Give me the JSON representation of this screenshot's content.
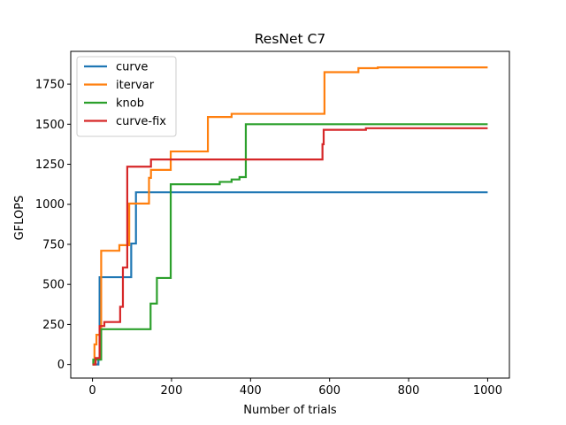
{
  "chart_data": {
    "type": "line",
    "title": "ResNet C7",
    "xlabel": "Number of trials",
    "ylabel": "GFLOPS",
    "xlim": [
      -55,
      1055
    ],
    "ylim": [
      -85,
      1955
    ],
    "xticks": [
      0,
      200,
      400,
      600,
      800,
      1000
    ],
    "yticks": [
      0,
      250,
      500,
      750,
      1000,
      1250,
      1500,
      1750
    ],
    "grid": false,
    "legend_position": "top-left",
    "step": true,
    "series": [
      {
        "name": "curve",
        "color": "#1f77b4",
        "points": [
          [
            0,
            0
          ],
          [
            15,
            30
          ],
          [
            18,
            545
          ],
          [
            95,
            545
          ],
          [
            98,
            755
          ],
          [
            108,
            755
          ],
          [
            110,
            1075
          ],
          [
            1000,
            1075
          ]
        ]
      },
      {
        "name": "itervar",
        "color": "#ff7f0e",
        "points": [
          [
            0,
            0
          ],
          [
            5,
            125
          ],
          [
            10,
            185
          ],
          [
            20,
            185
          ],
          [
            22,
            710
          ],
          [
            65,
            710
          ],
          [
            68,
            745
          ],
          [
            90,
            745
          ],
          [
            93,
            1005
          ],
          [
            140,
            1005
          ],
          [
            143,
            1165
          ],
          [
            148,
            1215
          ],
          [
            195,
            1215
          ],
          [
            198,
            1330
          ],
          [
            290,
            1330
          ],
          [
            292,
            1545
          ],
          [
            350,
            1545
          ],
          [
            352,
            1565
          ],
          [
            585,
            1565
          ],
          [
            587,
            1825
          ],
          [
            670,
            1825
          ],
          [
            673,
            1850
          ],
          [
            720,
            1850
          ],
          [
            722,
            1855
          ],
          [
            1000,
            1855
          ]
        ]
      },
      {
        "name": "knob",
        "color": "#2ca02c",
        "points": [
          [
            0,
            0
          ],
          [
            2,
            30
          ],
          [
            20,
            30
          ],
          [
            22,
            220
          ],
          [
            145,
            220
          ],
          [
            147,
            380
          ],
          [
            160,
            380
          ],
          [
            163,
            540
          ],
          [
            195,
            540
          ],
          [
            198,
            1125
          ],
          [
            320,
            1125
          ],
          [
            322,
            1140
          ],
          [
            350,
            1140
          ],
          [
            352,
            1155
          ],
          [
            370,
            1155
          ],
          [
            372,
            1170
          ],
          [
            385,
            1170
          ],
          [
            388,
            1500
          ],
          [
            1000,
            1500
          ]
        ]
      },
      {
        "name": "curve-fix",
        "color": "#d62728",
        "points": [
          [
            0,
            0
          ],
          [
            8,
            40
          ],
          [
            16,
            40
          ],
          [
            18,
            240
          ],
          [
            28,
            240
          ],
          [
            30,
            265
          ],
          [
            68,
            265
          ],
          [
            70,
            360
          ],
          [
            75,
            360
          ],
          [
            77,
            605
          ],
          [
            85,
            605
          ],
          [
            88,
            1235
          ],
          [
            145,
            1235
          ],
          [
            148,
            1280
          ],
          [
            580,
            1280
          ],
          [
            582,
            1375
          ],
          [
            585,
            1465
          ],
          [
            690,
            1465
          ],
          [
            692,
            1475
          ],
          [
            1000,
            1475
          ]
        ]
      }
    ]
  }
}
